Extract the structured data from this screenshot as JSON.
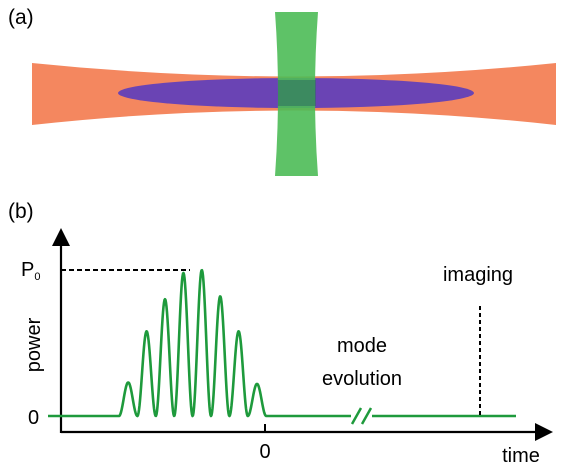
{
  "panel_a": {
    "label": "(a)",
    "colors": {
      "horizontal_beam": "#f4875f",
      "vertical_beam": "#4cbb56",
      "atom_cloud": "#6a44b4",
      "overlap_center": "#2e6b60"
    }
  },
  "panel_b": {
    "label": "(b)",
    "y_axis_label": "power",
    "x_axis_label": "time",
    "y_tick_p0": "P",
    "y_tick_p0_subscript": "0",
    "y_tick_zero": "0",
    "x_tick_zero": "0",
    "annotation_mode_line1": "mode",
    "annotation_mode_line2": "evolution",
    "annotation_imaging": "imaging",
    "colors": {
      "signal": "#1e9a3c",
      "axes": "#000000"
    },
    "signal": {
      "pulse_peaks_relative_to_P0": [
        0.23,
        0.58,
        0.8,
        0.98,
        1.0,
        0.82,
        0.58,
        0.22
      ],
      "axis_break": true
    }
  }
}
